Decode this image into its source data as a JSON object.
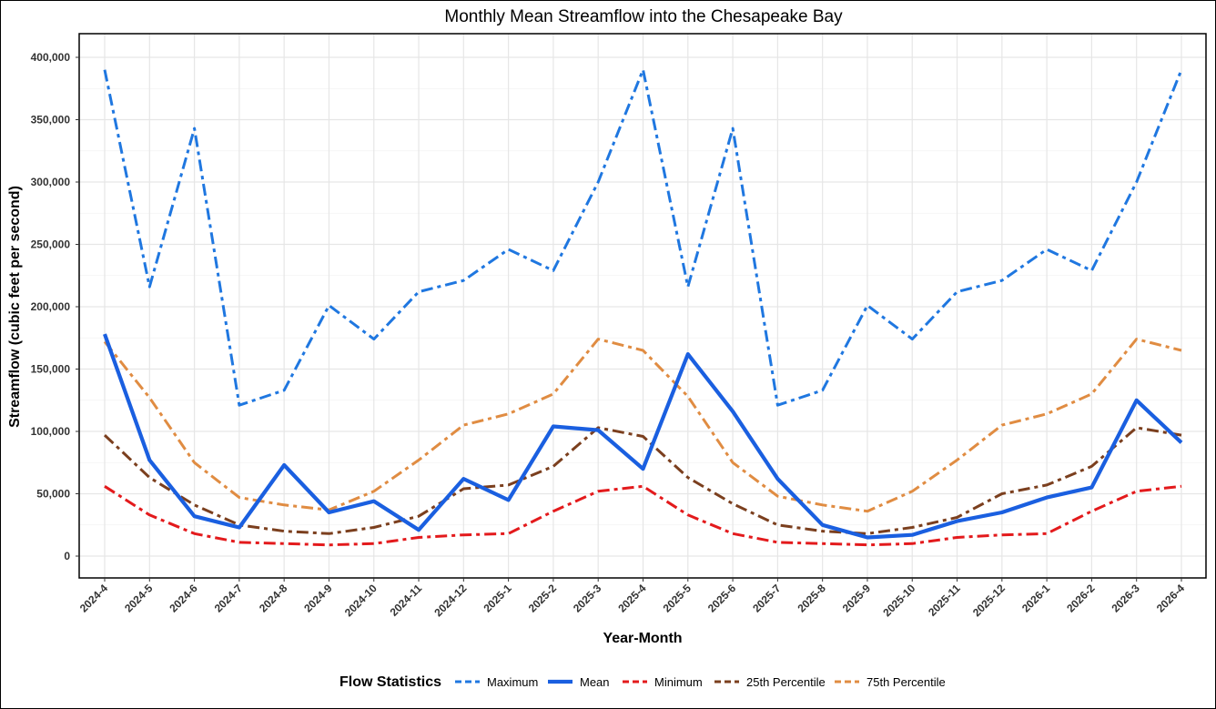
{
  "chart_data": {
    "type": "line",
    "title": "Monthly Mean Streamflow into the Chesapeake Bay",
    "xlabel": "Year-Month",
    "ylabel": "Streamflow (cubic feet per second)",
    "ylim": [
      0,
      400000
    ],
    "y_ticks": [
      0,
      50000,
      100000,
      150000,
      200000,
      250000,
      300000,
      350000,
      400000
    ],
    "y_tick_labels": [
      "0",
      "50,000",
      "100,000",
      "150,000",
      "200,000",
      "250,000",
      "300,000",
      "350,000",
      "400,000"
    ],
    "grid": true,
    "legend_title": "Flow Statistics",
    "legend_position": "bottom",
    "categories": [
      "2024-4",
      "2024-5",
      "2024-6",
      "2024-7",
      "2024-8",
      "2024-9",
      "2024-10",
      "2024-11",
      "2024-12",
      "2025-1",
      "2025-2",
      "2025-3",
      "2025-4",
      "2025-5",
      "2025-6",
      "2025-7",
      "2025-8",
      "2025-9",
      "2025-10",
      "2025-11",
      "2025-12",
      "2026-1",
      "2026-2",
      "2026-3",
      "2026-4"
    ],
    "series": [
      {
        "name": "Maximum",
        "color": "#1f77e0",
        "dash": "dashdot",
        "values": [
          390000,
          216000,
          343000,
          121000,
          133000,
          201000,
          174000,
          212000,
          221000,
          246000,
          229000,
          300000,
          390000,
          216000,
          343000,
          121000,
          133000,
          201000,
          174000,
          212000,
          221000,
          246000,
          229000,
          300000,
          390000
        ]
      },
      {
        "name": "75th Percentile",
        "color": "#e08c42",
        "dash": "dashdot",
        "values": [
          172000,
          127000,
          75000,
          47000,
          41000,
          37000,
          52000,
          77000,
          105000,
          114000,
          130000,
          174000,
          165000,
          128000,
          75000,
          48000,
          41000,
          36000,
          52000,
          77000,
          105000,
          114000,
          130000,
          174000,
          165000
        ]
      },
      {
        "name": "25th Percentile",
        "color": "#7b3f1e",
        "dash": "dashdot",
        "values": [
          97000,
          63000,
          41000,
          25000,
          20000,
          18000,
          23000,
          32000,
          54000,
          57000,
          72000,
          103000,
          96000,
          63000,
          42000,
          25000,
          20000,
          18000,
          23000,
          31000,
          50000,
          57000,
          72000,
          103000,
          97000
        ]
      },
      {
        "name": "Minimum",
        "color": "#e31a1c",
        "dash": "dashdot",
        "values": [
          56000,
          33000,
          18000,
          11000,
          10000,
          9000,
          10000,
          15000,
          17000,
          18000,
          36000,
          52000,
          56000,
          33000,
          18000,
          11000,
          10000,
          9000,
          10000,
          15000,
          17000,
          18000,
          36000,
          52000,
          56000
        ]
      },
      {
        "name": "Mean",
        "color": "#1a5fe0",
        "dash": "solid",
        "values": [
          178000,
          77000,
          32000,
          23000,
          73000,
          35000,
          44000,
          21000,
          62000,
          45000,
          104000,
          101000,
          70000,
          162000,
          116000,
          62000,
          25000,
          15000,
          17000,
          28000,
          35000,
          47000,
          55000,
          125000,
          91000
        ]
      }
    ],
    "legend_order": [
      "Maximum",
      "Mean",
      "Minimum",
      "25th Percentile",
      "75th Percentile"
    ]
  }
}
